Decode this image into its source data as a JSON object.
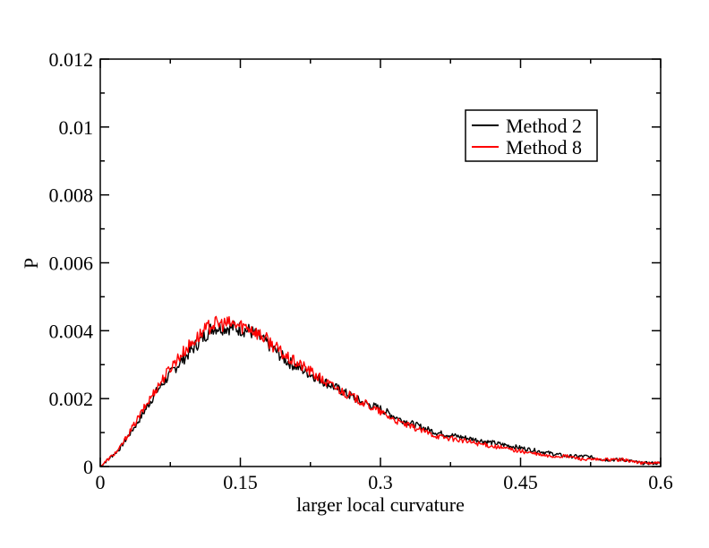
{
  "chart_data": {
    "type": "line",
    "xlabel": "larger local curvature",
    "ylabel": "P",
    "xlim": [
      0,
      0.6
    ],
    "ylim": [
      0,
      0.012
    ],
    "x_ticks": [
      0,
      0.15,
      0.3,
      0.45,
      0.6
    ],
    "x_tick_labels": [
      "0",
      "0.15",
      "0.3",
      "0.45",
      "0.6"
    ],
    "y_ticks": [
      0,
      0.002,
      0.004,
      0.006,
      0.008,
      0.01,
      0.012
    ],
    "y_tick_labels": [
      "0",
      "0.002",
      "0.004",
      "0.006",
      "0.008",
      "0.01",
      "0.012"
    ],
    "grid": false,
    "legend_position": "top-right",
    "series": [
      {
        "name": "Method 2",
        "color": "#000000",
        "x": [
          0.0,
          0.02,
          0.04,
          0.06,
          0.08,
          0.1,
          0.12,
          0.14,
          0.16,
          0.18,
          0.2,
          0.22,
          0.24,
          0.26,
          0.28,
          0.3,
          0.32,
          0.34,
          0.36,
          0.38,
          0.4,
          0.42,
          0.44,
          0.46,
          0.48,
          0.5,
          0.52,
          0.54,
          0.56,
          0.58,
          0.6
        ],
        "y": [
          0.0,
          0.0005,
          0.0013,
          0.0022,
          0.0029,
          0.0035,
          0.0041,
          0.0041,
          0.004,
          0.0036,
          0.0031,
          0.0028,
          0.0025,
          0.0022,
          0.0019,
          0.0017,
          0.0014,
          0.0012,
          0.001,
          0.0009,
          0.0008,
          0.0007,
          0.0006,
          0.0005,
          0.0004,
          0.0003,
          0.0003,
          0.0002,
          0.0002,
          0.0001,
          0.0001
        ]
      },
      {
        "name": "Method 8",
        "color": "#ff0000",
        "x": [
          0.0,
          0.02,
          0.04,
          0.06,
          0.08,
          0.1,
          0.12,
          0.14,
          0.16,
          0.18,
          0.2,
          0.22,
          0.24,
          0.26,
          0.28,
          0.3,
          0.32,
          0.34,
          0.36,
          0.38,
          0.4,
          0.42,
          0.44,
          0.46,
          0.48,
          0.5,
          0.52,
          0.54,
          0.56,
          0.58,
          0.6
        ],
        "y": [
          0.0,
          0.0005,
          0.0014,
          0.0023,
          0.0031,
          0.0037,
          0.0042,
          0.0042,
          0.0041,
          0.0037,
          0.0032,
          0.0029,
          0.0025,
          0.0022,
          0.0019,
          0.0016,
          0.0013,
          0.0011,
          0.0009,
          0.0008,
          0.0007,
          0.0006,
          0.0005,
          0.0004,
          0.0003,
          0.0003,
          0.0002,
          0.0002,
          0.0002,
          0.0001,
          0.0001
        ]
      }
    ]
  }
}
